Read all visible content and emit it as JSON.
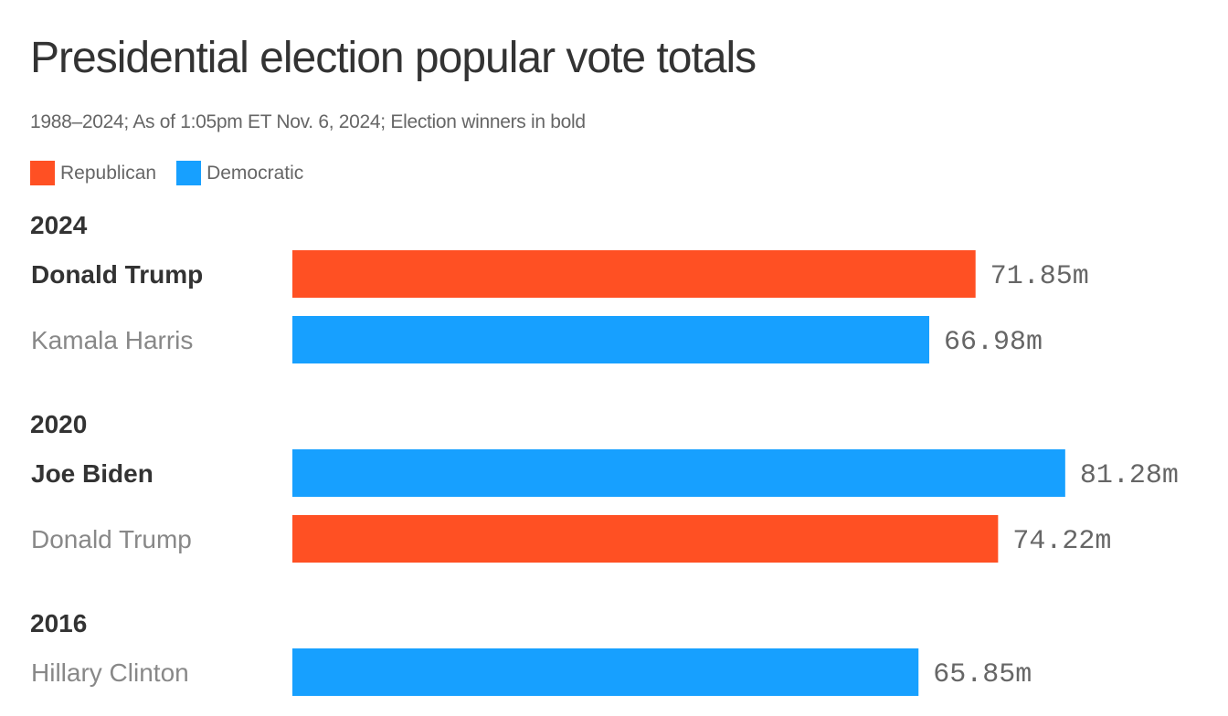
{
  "chart_data": {
    "type": "bar",
    "orientation": "horizontal",
    "title": "Presidential election popular vote totals",
    "subtitle": "1988–2024; As of 1:05pm ET Nov. 6, 2024; Election winners in bold",
    "unit_suffix": "m",
    "xlim": [
      0,
      98.4
    ],
    "legend": [
      {
        "name": "Republican",
        "color": "#ff5023"
      },
      {
        "name": "Democratic",
        "color": "#17a0ff"
      }
    ],
    "legend_position": "top-left",
    "groups": [
      {
        "year": "2024",
        "candidates": [
          {
            "name": "Donald Trump",
            "party": "Republican",
            "value": 71.85,
            "label": "71.85m",
            "winner": true
          },
          {
            "name": "Kamala Harris",
            "party": "Democratic",
            "value": 66.98,
            "label": "66.98m",
            "winner": false
          }
        ]
      },
      {
        "year": "2020",
        "candidates": [
          {
            "name": "Joe Biden",
            "party": "Democratic",
            "value": 81.28,
            "label": "81.28m",
            "winner": true
          },
          {
            "name": "Donald Trump",
            "party": "Republican",
            "value": 74.22,
            "label": "74.22m",
            "winner": false
          }
        ]
      },
      {
        "year": "2016",
        "candidates": [
          {
            "name": "Hillary Clinton",
            "party": "Democratic",
            "value": 65.85,
            "label": "65.85m",
            "winner": false
          }
        ]
      }
    ]
  }
}
